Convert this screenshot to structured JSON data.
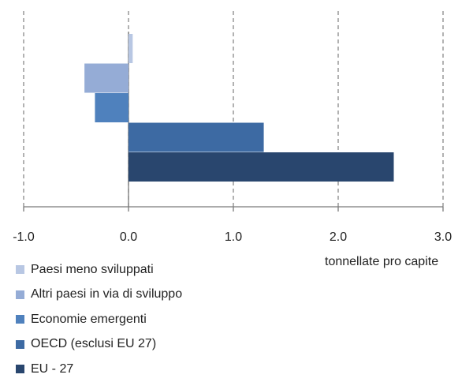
{
  "chart_data": {
    "type": "bar",
    "orientation": "horizontal",
    "title": "",
    "xlabel": "tonnellate pro capite",
    "ylabel": "",
    "xlim": [
      -1.0,
      3.0
    ],
    "xticks": [
      "-1.0",
      "0.0",
      "1.0",
      "2.0",
      "3.0"
    ],
    "grid": true,
    "legend_position": "bottom-left",
    "series": [
      {
        "name": "Paesi meno sviluppati",
        "value": 0.04,
        "color": "#b8c7e3"
      },
      {
        "name": "Altri paesi in via di sviluppo",
        "value": -0.42,
        "color": "#95acd6"
      },
      {
        "name": "Economie emergenti",
        "value": -0.32,
        "color": "#4f81bd"
      },
      {
        "name": "OECD (esclusi EU 27)",
        "value": 1.29,
        "color": "#3d6aa3"
      },
      {
        "name": "EU - 27",
        "value": 2.53,
        "color": "#29466e"
      }
    ]
  }
}
